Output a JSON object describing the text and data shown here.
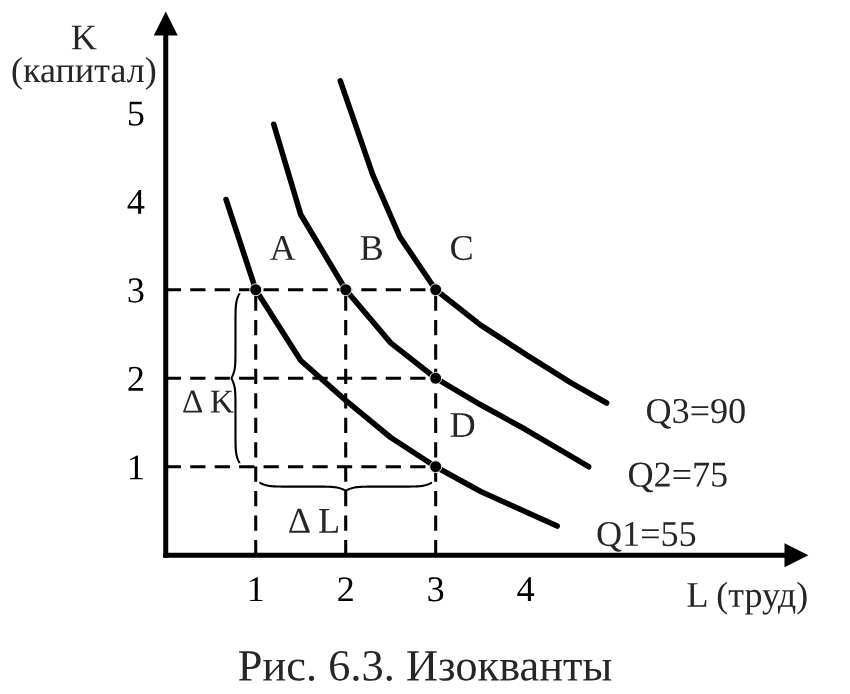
{
  "chart_data": {
    "type": "line",
    "title": "Рис. 6.3. Изокванты",
    "xlabel": "L (труд)",
    "ylabel": "K\n(капитал)",
    "xlim": [
      0,
      7
    ],
    "ylim": [
      0,
      6
    ],
    "xticks": [
      1,
      2,
      3,
      4
    ],
    "yticks": [
      1,
      2,
      3,
      4,
      5
    ],
    "series": [
      {
        "name": "Q1=55",
        "color": "#000000",
        "x": [
          0.67,
          1,
          1.5,
          2,
          2.5,
          3,
          3.5,
          4.35
        ],
        "values": [
          4.02,
          3,
          2.2,
          1.75,
          1.33,
          1,
          0.72,
          0.33
        ]
      },
      {
        "name": "Q2=75",
        "color": "#000000",
        "x": [
          1.2,
          1.5,
          2,
          2.5,
          3,
          3.5,
          4,
          4.7
        ],
        "values": [
          4.87,
          3.85,
          3,
          2.4,
          2,
          1.7,
          1.42,
          1.0
        ]
      },
      {
        "name": "Q3=90",
        "color": "#000000",
        "x": [
          1.94,
          2.3,
          2.6,
          3,
          3.5,
          4,
          4.5,
          4.9
        ],
        "values": [
          5.36,
          4.3,
          3.6,
          3,
          2.6,
          2.27,
          1.95,
          1.72
        ]
      },
      {
        "type": "line",
        "line_style": "dashed",
        "color": "#000000",
        "x": [
          0,
          3
        ],
        "values": [
          3,
          3
        ]
      },
      {
        "type": "line",
        "line_style": "dashed",
        "color": "#000000",
        "x": [
          0,
          3
        ],
        "values": [
          2,
          2
        ]
      },
      {
        "type": "line",
        "line_style": "dashed",
        "color": "#000000",
        "x": [
          0,
          3
        ],
        "values": [
          1,
          1
        ]
      },
      {
        "type": "line",
        "line_style": "dashed",
        "color": "#000000",
        "x": [
          1,
          1
        ],
        "values": [
          0,
          3
        ]
      },
      {
        "type": "line",
        "line_style": "dashed",
        "color": "#000000",
        "x": [
          2,
          2
        ],
        "values": [
          0,
          3
        ]
      },
      {
        "type": "line",
        "line_style": "dashed",
        "color": "#000000",
        "x": [
          3,
          3
        ],
        "values": [
          0,
          3
        ]
      },
      {
        "type": "scatter",
        "marker": "circle",
        "color": "#000000",
        "x": [
          1,
          2,
          3,
          3,
          3
        ],
        "values": [
          3,
          3,
          3,
          2,
          1
        ]
      }
    ],
    "annotations": [
      {
        "text": "A",
        "x": 1,
        "y": 3
      },
      {
        "text": "B",
        "x": 2,
        "y": 3
      },
      {
        "text": "C",
        "x": 3,
        "y": 3
      },
      {
        "text": "D",
        "x": 3,
        "y": 1
      },
      {
        "text": "Δ K",
        "x": 0.82,
        "y": 2
      },
      {
        "text": "Δ L",
        "x": 2,
        "y": 0.82
      }
    ]
  }
}
